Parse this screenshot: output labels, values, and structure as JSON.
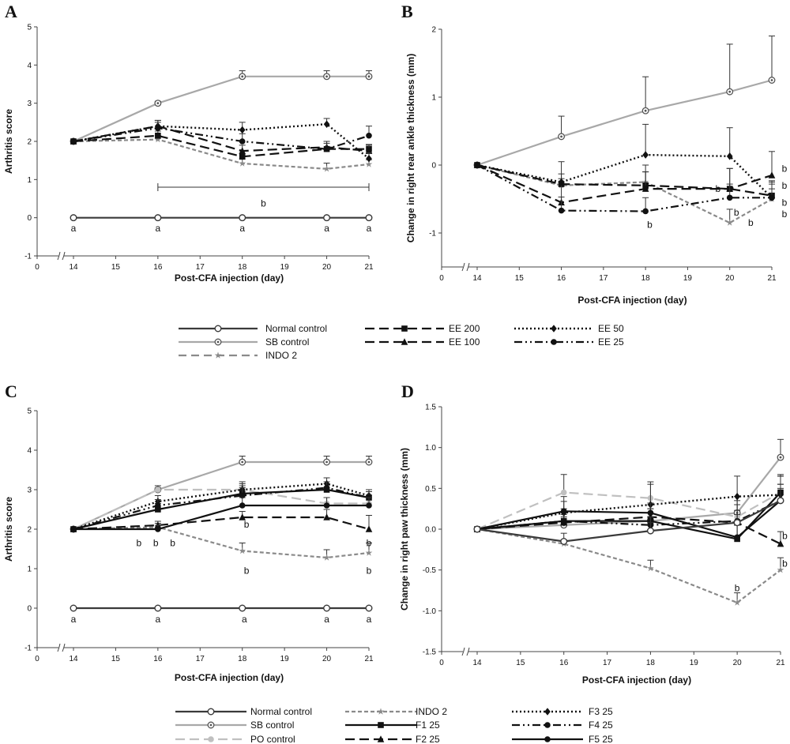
{
  "legend_top": [
    {
      "label": "Normal control",
      "color": "#3a3a3a",
      "dash": "",
      "marker": "circle-open",
      "width": 2.2
    },
    {
      "label": "SB control",
      "color": "#a8a8a8",
      "dash": "",
      "marker": "circle-dot",
      "width": 2.2
    },
    {
      "label": "INDO 2",
      "color": "#8a8a8a",
      "dash": "10,6",
      "marker": "star",
      "width": 2.2
    },
    {
      "label": "EE 200",
      "color": "#111111",
      "dash": "12,6",
      "marker": "square",
      "width": 2.2
    },
    {
      "label": "EE 100",
      "color": "#111111",
      "dash": "12,6",
      "marker": "triangle",
      "width": 2.2
    },
    {
      "label": "EE 50",
      "color": "#111111",
      "dash": "2,3",
      "marker": "diamond",
      "width": 2.4
    },
    {
      "label": "EE 25",
      "color": "#111111",
      "dash": "10,4,2,4,2,4",
      "marker": "circle",
      "width": 2.2
    }
  ],
  "legend_bottom": [
    {
      "label": "Normal control",
      "color": "#3a3a3a",
      "dash": "",
      "marker": "circle-open",
      "width": 2.2
    },
    {
      "label": "SB control",
      "color": "#a8a8a8",
      "dash": "",
      "marker": "circle-dot",
      "width": 2.2
    },
    {
      "label": "PO control",
      "color": "#c0c0c0",
      "dash": "12,6",
      "marker": "circle",
      "width": 2.2
    },
    {
      "label": "INDO 2",
      "color": "#8a8a8a",
      "dash": "5,3",
      "marker": "star",
      "width": 2.2
    },
    {
      "label": "F1 25",
      "color": "#111111",
      "dash": "",
      "marker": "square",
      "width": 2.2
    },
    {
      "label": "F2 25",
      "color": "#111111",
      "dash": "12,6",
      "marker": "triangle",
      "width": 2.2
    },
    {
      "label": "F3 25",
      "color": "#111111",
      "dash": "2,3",
      "marker": "diamond",
      "width": 2.4
    },
    {
      "label": "F4 25",
      "color": "#111111",
      "dash": "10,4,2,4,2,4",
      "marker": "circle",
      "width": 2.2
    },
    {
      "label": "F5 25",
      "color": "#111111",
      "dash": "",
      "marker": "circle",
      "width": 2.2
    }
  ],
  "chart_data": [
    {
      "panel": "A",
      "type": "line",
      "xlabel": "Post-CFA injection (day)",
      "ylabel": "Arthritis score",
      "x_ticks": [
        "0",
        "14",
        "15",
        "16",
        "17",
        "18",
        "19",
        "20",
        "21"
      ],
      "ylim": [
        -1,
        5
      ],
      "y_ticks": [
        "-1",
        "0",
        "1",
        "2",
        "3",
        "4",
        "5"
      ],
      "series": [
        {
          "name": "Normal control",
          "x": [
            14,
            16,
            18,
            20,
            21
          ],
          "y": [
            0,
            0,
            0,
            0,
            0
          ],
          "err": [
            0,
            0,
            0,
            0,
            0
          ]
        },
        {
          "name": "SB control",
          "x": [
            14,
            16,
            18,
            20,
            21
          ],
          "y": [
            2,
            3,
            3.7,
            3.7,
            3.7
          ],
          "err": [
            0,
            0.05,
            0.15,
            0.15,
            0.15
          ]
        },
        {
          "name": "INDO 2",
          "x": [
            14,
            16,
            18,
            20,
            21
          ],
          "y": [
            2,
            2.05,
            1.42,
            1.28,
            1.4
          ],
          "err": [
            0,
            0.1,
            0.12,
            0.15,
            0.12
          ]
        },
        {
          "name": "EE 200",
          "x": [
            14,
            16,
            18,
            20,
            21
          ],
          "y": [
            2,
            2.15,
            1.6,
            1.8,
            1.8
          ],
          "err": [
            0,
            0.12,
            0.15,
            0.15,
            0.12
          ]
        },
        {
          "name": "EE 100",
          "x": [
            14,
            16,
            18,
            20,
            21
          ],
          "y": [
            2,
            2.4,
            1.75,
            1.85,
            1.75
          ],
          "err": [
            0,
            0.15,
            0.15,
            0.15,
            0.15
          ]
        },
        {
          "name": "EE 50",
          "x": [
            14,
            16,
            18,
            20,
            21
          ],
          "y": [
            2,
            2.4,
            2.3,
            2.45,
            1.55
          ],
          "err": [
            0,
            0.15,
            0.2,
            0.15,
            0.15
          ]
        },
        {
          "name": "EE 25",
          "x": [
            14,
            16,
            18,
            20,
            21
          ],
          "y": [
            2,
            2.35,
            2.0,
            1.8,
            2.15
          ],
          "err": [
            0,
            0.15,
            0.2,
            0.2,
            0.25
          ]
        }
      ],
      "annotations": [
        {
          "text": "a",
          "x": 14,
          "y": -0.28
        },
        {
          "text": "a",
          "x": 16,
          "y": -0.28
        },
        {
          "text": "a",
          "x": 18,
          "y": -0.28
        },
        {
          "text": "a",
          "x": 20,
          "y": -0.28
        },
        {
          "text": "a",
          "x": 21,
          "y": -0.28
        },
        {
          "text": "b",
          "x": 18.5,
          "y": 0.38
        }
      ],
      "bracket": {
        "x1": 16,
        "x2": 21,
        "y": 0.8
      }
    },
    {
      "panel": "B",
      "type": "line",
      "xlabel": "Post-CFA injection (day)",
      "ylabel": "Change in right rear ankle thickness (mm)",
      "x_ticks": [
        "0",
        "14",
        "15",
        "16",
        "17",
        "18",
        "19",
        "20",
        "21"
      ],
      "ylim": [
        -1.5,
        2
      ],
      "y_ticks": [
        "-1",
        "0",
        "1",
        "2"
      ],
      "series": [
        {
          "name": "SB control",
          "x": [
            14,
            16,
            18,
            20,
            21
          ],
          "y": [
            0,
            0.42,
            0.8,
            1.08,
            1.25
          ],
          "err": [
            0,
            0.3,
            0.5,
            0.7,
            0.65
          ]
        },
        {
          "name": "INDO 2",
          "x": [
            14,
            16,
            18,
            20,
            21
          ],
          "y": [
            0,
            -0.3,
            -0.25,
            -0.85,
            -0.5
          ],
          "err": [
            0,
            0.1,
            0.15,
            0.2,
            0.15
          ]
        },
        {
          "name": "EE 200",
          "x": [
            14,
            16,
            18,
            20,
            21
          ],
          "y": [
            0,
            -0.28,
            -0.3,
            -0.35,
            -0.45
          ],
          "err": [
            0,
            0.15,
            0.2,
            0.3,
            0.2
          ]
        },
        {
          "name": "EE 100",
          "x": [
            14,
            16,
            18,
            20,
            21
          ],
          "y": [
            0,
            -0.55,
            -0.35,
            -0.35,
            -0.15
          ],
          "err": [
            0,
            0.3,
            0.35,
            0.3,
            0.35
          ]
        },
        {
          "name": "EE 50",
          "x": [
            14,
            16,
            18,
            20,
            21
          ],
          "y": [
            0,
            -0.25,
            0.15,
            0.13,
            -0.48
          ],
          "err": [
            0,
            0.3,
            0.45,
            0.42,
            0.25
          ]
        },
        {
          "name": "EE 25",
          "x": [
            14,
            16,
            18,
            20,
            21
          ],
          "y": [
            0,
            -0.67,
            -0.68,
            -0.48,
            -0.48
          ],
          "err": [
            0,
            0.2,
            0.2,
            0.2,
            0.2
          ]
        }
      ],
      "annotations": [
        {
          "text": "b",
          "x": 18.1,
          "y": -0.88
        },
        {
          "text": "b",
          "x": 19.72,
          "y": -0.35
        },
        {
          "text": "b",
          "x": 20.16,
          "y": -0.7
        },
        {
          "text": "b",
          "x": 20.5,
          "y": -0.85
        },
        {
          "text": "b",
          "x": 21.3,
          "y": -0.05
        },
        {
          "text": "b",
          "x": 21.3,
          "y": -0.3
        },
        {
          "text": "b",
          "x": 21.3,
          "y": -0.55
        },
        {
          "text": "b",
          "x": 21.3,
          "y": -0.72
        }
      ]
    },
    {
      "panel": "C",
      "type": "line",
      "xlabel": "Post-CFA injection (day)",
      "ylabel": "Arthritis score",
      "x_ticks": [
        "0",
        "14",
        "15",
        "16",
        "17",
        "18",
        "19",
        "20",
        "21"
      ],
      "ylim": [
        -1,
        5
      ],
      "y_ticks": [
        "-1",
        "0",
        "1",
        "2",
        "3",
        "4",
        "5"
      ],
      "series": [
        {
          "name": "Normal control",
          "x": [
            14,
            16,
            18,
            20,
            21
          ],
          "y": [
            0,
            0,
            0,
            0,
            0
          ],
          "err": [
            0,
            0,
            0,
            0,
            0
          ]
        },
        {
          "name": "SB control",
          "x": [
            14,
            16,
            18,
            20,
            21
          ],
          "y": [
            2,
            3,
            3.7,
            3.7,
            3.7
          ],
          "err": [
            0,
            0.05,
            0.15,
            0.15,
            0.15
          ]
        },
        {
          "name": "PO control",
          "x": [
            14,
            16,
            18,
            20,
            21
          ],
          "y": [
            2,
            3,
            3.0,
            2.65,
            2.65
          ],
          "err": [
            0,
            0.1,
            0.15,
            0.15,
            0.15
          ]
        },
        {
          "name": "INDO 2",
          "x": [
            14,
            16,
            18,
            20,
            21
          ],
          "y": [
            2,
            2.05,
            1.45,
            1.28,
            1.4
          ],
          "err": [
            0,
            0.1,
            0.2,
            0.2,
            0.25
          ]
        },
        {
          "name": "F1 25",
          "x": [
            14,
            16,
            18,
            20,
            21
          ],
          "y": [
            2,
            2.5,
            2.9,
            3.0,
            2.8
          ],
          "err": [
            0,
            0.15,
            0.2,
            0.15,
            0.15
          ]
        },
        {
          "name": "F2 25",
          "x": [
            14,
            16,
            18,
            20,
            21
          ],
          "y": [
            2,
            2.1,
            2.3,
            2.3,
            2.0
          ],
          "err": [
            0,
            0.1,
            0.15,
            0.2,
            0.35
          ]
        },
        {
          "name": "F3 25",
          "x": [
            14,
            16,
            18,
            20,
            21
          ],
          "y": [
            2,
            2.7,
            3.0,
            3.15,
            2.85
          ],
          "err": [
            0,
            0.15,
            0.2,
            0.15,
            0.15
          ]
        },
        {
          "name": "F4 25",
          "x": [
            14,
            16,
            18,
            20,
            21
          ],
          "y": [
            2,
            2.6,
            2.85,
            3.05,
            2.8
          ],
          "err": [
            0,
            0.15,
            0.2,
            0.15,
            0.15
          ]
        },
        {
          "name": "F5 25",
          "x": [
            14,
            16,
            18,
            20,
            21
          ],
          "y": [
            2,
            2.0,
            2.6,
            2.6,
            2.6
          ],
          "err": [
            0,
            0.1,
            0.2,
            0.2,
            0.2
          ]
        }
      ],
      "annotations": [
        {
          "text": "a",
          "x": 14,
          "y": -0.28
        },
        {
          "text": "a",
          "x": 16,
          "y": -0.28
        },
        {
          "text": "a",
          "x": 18.05,
          "y": -0.28
        },
        {
          "text": "a",
          "x": 20,
          "y": -0.28
        },
        {
          "text": "a",
          "x": 21,
          "y": -0.28
        },
        {
          "text": "b",
          "x": 15.55,
          "y": 1.65
        },
        {
          "text": "b",
          "x": 15.95,
          "y": 1.65
        },
        {
          "text": "b",
          "x": 16.35,
          "y": 1.65
        },
        {
          "text": "b",
          "x": 18.1,
          "y": 2.12
        },
        {
          "text": "b",
          "x": 18.1,
          "y": 0.95
        },
        {
          "text": "b",
          "x": 21,
          "y": 1.65
        },
        {
          "text": "b",
          "x": 21,
          "y": 0.95
        }
      ]
    },
    {
      "panel": "D",
      "type": "line",
      "xlabel": "Post-CFA injection (day)",
      "ylabel": "Change in right paw thickness (mm)",
      "x_ticks": [
        "0",
        "14",
        "15",
        "16",
        "17",
        "18",
        "19",
        "20",
        "21"
      ],
      "ylim": [
        -1.5,
        1.5
      ],
      "y_ticks": [
        "-1.5",
        "-1.0",
        "-0.5",
        "0.0",
        "0.5",
        "1.0",
        "1.5"
      ],
      "series": [
        {
          "name": "SB control",
          "x": [
            14,
            16,
            18,
            20,
            21
          ],
          "y": [
            0,
            0.05,
            0.1,
            0.2,
            0.88
          ],
          "err": [
            0,
            0.1,
            0.15,
            0.2,
            0.22
          ]
        },
        {
          "name": "PO control",
          "x": [
            14,
            16,
            18,
            20,
            21
          ],
          "y": [
            0,
            0.45,
            0.38,
            0.15,
            0.45
          ],
          "err": [
            0,
            0.22,
            0.2,
            0.2,
            0.2
          ]
        },
        {
          "name": "INDO 2",
          "x": [
            14,
            16,
            18,
            20,
            21
          ],
          "y": [
            0,
            -0.18,
            -0.48,
            -0.9,
            -0.5
          ],
          "err": [
            0,
            0.05,
            0.1,
            0.12,
            0.15
          ]
        },
        {
          "name": "F1 25",
          "x": [
            14,
            16,
            18,
            20,
            21
          ],
          "y": [
            0,
            0.1,
            0.1,
            -0.12,
            0.45
          ],
          "err": [
            0,
            0.15,
            0.15,
            0.2,
            0.2
          ]
        },
        {
          "name": "F2 25",
          "x": [
            14,
            16,
            18,
            20,
            21
          ],
          "y": [
            0,
            0.08,
            0.15,
            0.08,
            -0.18
          ],
          "err": [
            0,
            0.1,
            0.15,
            0.15,
            0.15
          ]
        },
        {
          "name": "F3 25",
          "x": [
            14,
            16,
            18,
            20,
            21
          ],
          "y": [
            0,
            0.2,
            0.3,
            0.4,
            0.42
          ],
          "err": [
            0,
            0.2,
            0.25,
            0.25,
            0.25
          ]
        },
        {
          "name": "F4 25",
          "x": [
            14,
            16,
            18,
            20,
            21
          ],
          "y": [
            0,
            0.1,
            0.05,
            0.1,
            0.35
          ],
          "err": [
            0,
            0.1,
            0.1,
            0.2,
            0.2
          ]
        },
        {
          "name": "F5 25",
          "x": [
            14,
            16,
            18,
            20,
            21
          ],
          "y": [
            0,
            0.22,
            0.2,
            -0.1,
            0.35
          ],
          "err": [
            0,
            0.12,
            0.12,
            0.15,
            0.2
          ]
        },
        {
          "name": "Normal control",
          "x": [
            14,
            16,
            18,
            20,
            21
          ],
          "y": [
            0,
            -0.15,
            -0.02,
            0.08,
            0.35
          ],
          "err": [
            0,
            0.1,
            0.1,
            0.1,
            0.15
          ]
        }
      ],
      "annotations": [
        {
          "text": "b",
          "x": 20.0,
          "y": -0.72
        },
        {
          "text": "b",
          "x": 21.1,
          "y": -0.08
        },
        {
          "text": "b",
          "x": 21.1,
          "y": -0.42
        }
      ]
    }
  ]
}
